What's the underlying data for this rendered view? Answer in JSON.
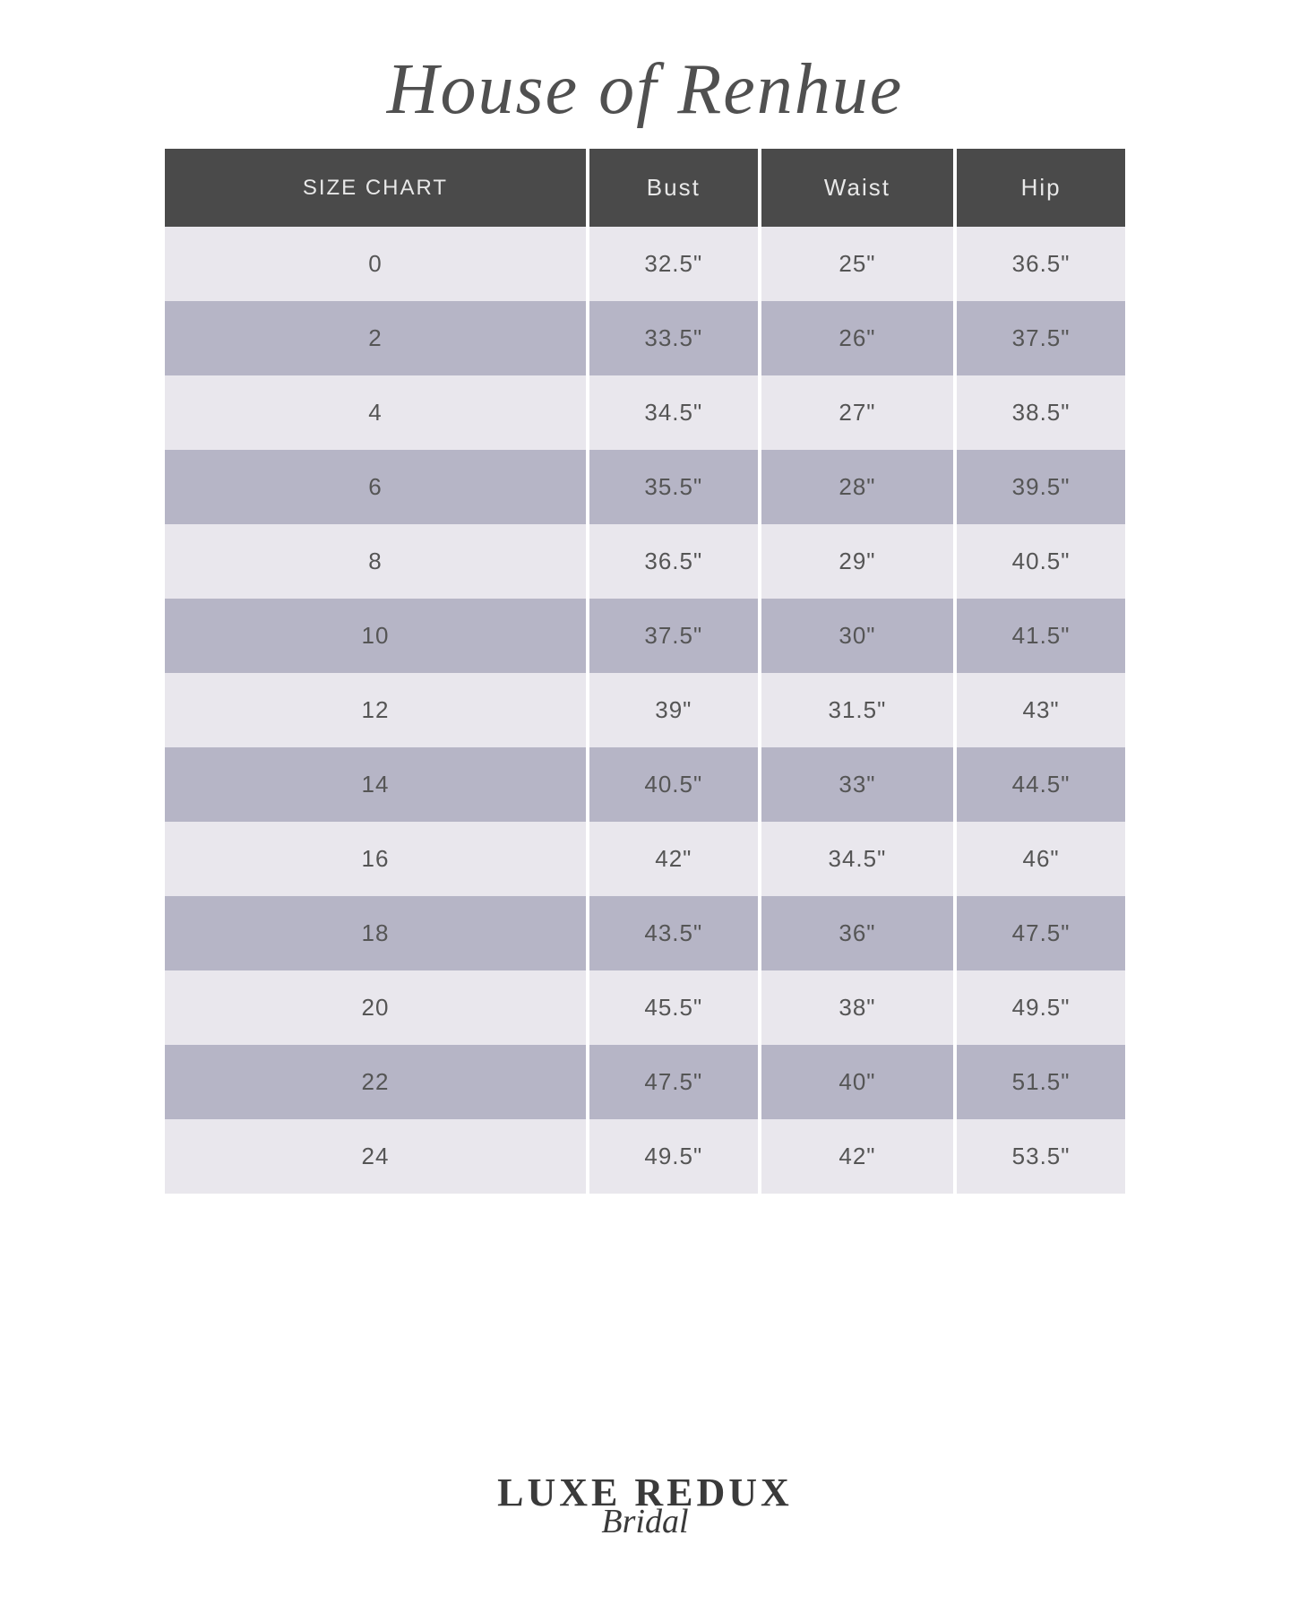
{
  "title": "House of Renhue",
  "table": {
    "columns": [
      "SIZE CHART",
      "Bust",
      "Waist",
      "Hip"
    ],
    "rows": [
      [
        "0",
        "32.5\"",
        "25\"",
        "36.5\""
      ],
      [
        "2",
        "33.5\"",
        "26\"",
        "37.5\""
      ],
      [
        "4",
        "34.5\"",
        "27\"",
        "38.5\""
      ],
      [
        "6",
        "35.5\"",
        "28\"",
        "39.5\""
      ],
      [
        "8",
        "36.5\"",
        "29\"",
        "40.5\""
      ],
      [
        "10",
        "37.5\"",
        "30\"",
        "41.5\""
      ],
      [
        "12",
        "39\"",
        "31.5\"",
        "43\""
      ],
      [
        "14",
        "40.5\"",
        "33\"",
        "44.5\""
      ],
      [
        "16",
        "42\"",
        "34.5\"",
        "46\""
      ],
      [
        "18",
        "43.5\"",
        "36\"",
        "47.5\""
      ],
      [
        "20",
        "45.5\"",
        "38\"",
        "49.5\""
      ],
      [
        "22",
        "47.5\"",
        "40\"",
        "51.5\""
      ],
      [
        "24",
        "49.5\"",
        "42\"",
        "53.5\""
      ]
    ],
    "header_bg": "#4a4a4a",
    "header_text_color": "#e8e8e8",
    "row_even_bg": "#e9e7ed",
    "row_odd_bg": "#b6b5c6",
    "cell_text_color": "#555555",
    "header_fontsize": 26,
    "cell_fontsize": 26,
    "column_gap": 4
  },
  "footer": {
    "main": "LUXE REDUX",
    "sub": "Bridal"
  },
  "colors": {
    "background": "#ffffff",
    "title_color": "#505050",
    "footer_color": "#3a3a3a"
  }
}
